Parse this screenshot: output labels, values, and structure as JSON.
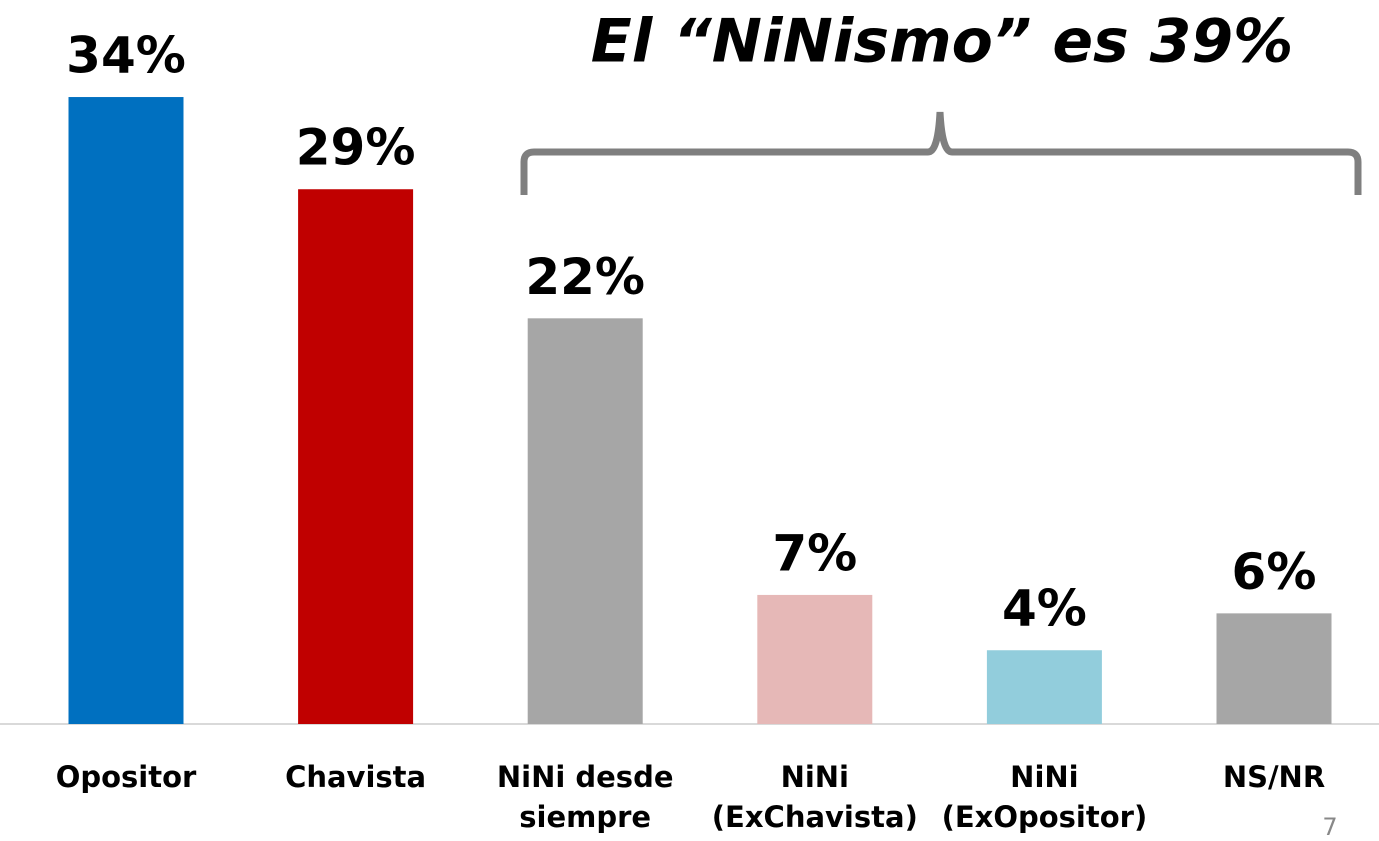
{
  "chart_data": {
    "type": "bar",
    "annotation": "El “NiNismo” es 39%",
    "page_number": "7",
    "categories": [
      "Opositor",
      "Chavista",
      "NiNi desde siempre",
      "NiNi (ExChavista)",
      "NiNi (ExOpositor)",
      "NS/NR"
    ],
    "values": [
      34,
      29,
      22,
      7,
      4,
      6
    ],
    "value_labels": [
      "34%",
      "29%",
      "22%",
      "7%",
      "4%",
      "6%"
    ],
    "colors": [
      "#0070c0",
      "#c00000",
      "#a6a6a6",
      "#e6b8b7",
      "#92cddc",
      "#a6a6a6"
    ]
  }
}
